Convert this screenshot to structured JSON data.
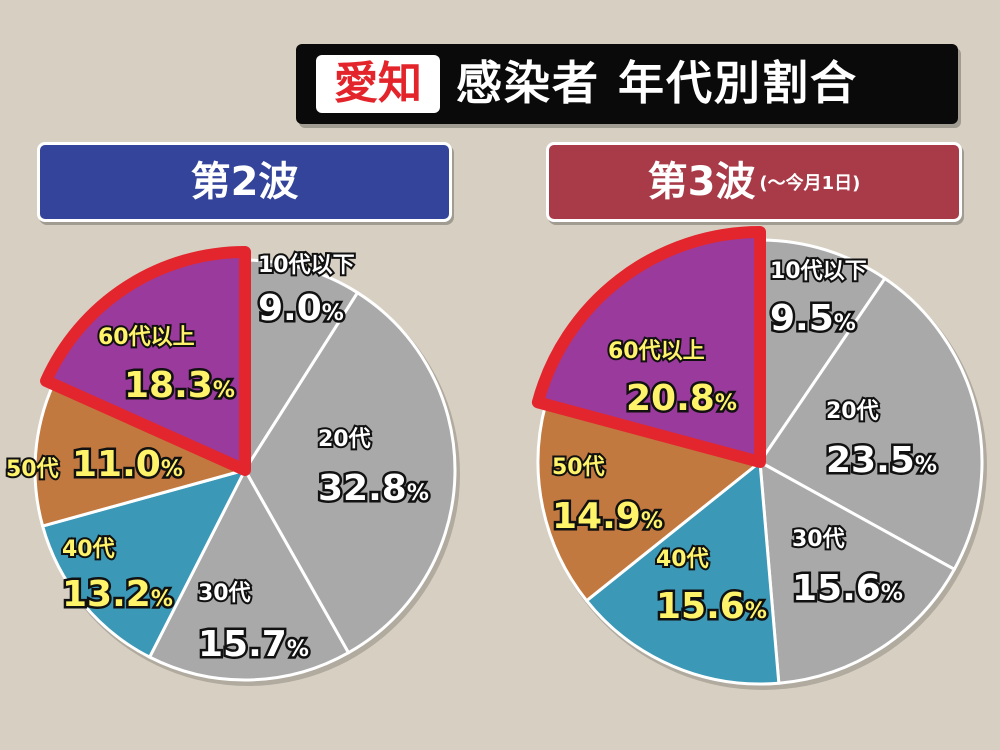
{
  "title": {
    "badge": "愛知",
    "text": "感染者 年代別割合"
  },
  "colors": {
    "under10": "#a9a9a9",
    "20s": "#a9a9a9",
    "30s": "#a9a9a9",
    "40s": "#3b98b6",
    "50s": "#c2793f",
    "60plus": "#9a3a9c",
    "highlight": "#e3262d",
    "label_white": "#ffffff",
    "label_yellow": "#fff36a"
  },
  "chart_data": [
    {
      "type": "pie",
      "title": "第2波",
      "subtitle": "",
      "unit": "%",
      "slices": [
        {
          "label": "10代以下",
          "value": 9.0,
          "color_key": "under10",
          "text_color": "label_white"
        },
        {
          "label": "20代",
          "value": 32.8,
          "color_key": "20s",
          "text_color": "label_white"
        },
        {
          "label": "30代",
          "value": 15.7,
          "color_key": "30s",
          "text_color": "label_white"
        },
        {
          "label": "40代",
          "value": 13.2,
          "color_key": "40s",
          "text_color": "label_yellow"
        },
        {
          "label": "50代",
          "value": 11.0,
          "color_key": "50s",
          "text_color": "label_yellow"
        },
        {
          "label": "60代以上",
          "value": 18.3,
          "color_key": "60plus",
          "text_color": "label_yellow",
          "highlighted": true
        }
      ]
    },
    {
      "type": "pie",
      "title": "第3波",
      "subtitle": "(〜今月1日)",
      "unit": "%",
      "slices": [
        {
          "label": "10代以下",
          "value": 9.5,
          "color_key": "under10",
          "text_color": "label_white"
        },
        {
          "label": "20代",
          "value": 23.5,
          "color_key": "20s",
          "text_color": "label_white"
        },
        {
          "label": "30代",
          "value": 15.6,
          "color_key": "30s",
          "text_color": "label_white"
        },
        {
          "label": "40代",
          "value": 15.6,
          "color_key": "40s",
          "text_color": "label_yellow"
        },
        {
          "label": "50代",
          "value": 14.9,
          "color_key": "50s",
          "text_color": "label_yellow"
        },
        {
          "label": "60代以上",
          "value": 20.8,
          "color_key": "60plus",
          "text_color": "label_yellow",
          "highlighted": true
        }
      ]
    }
  ]
}
